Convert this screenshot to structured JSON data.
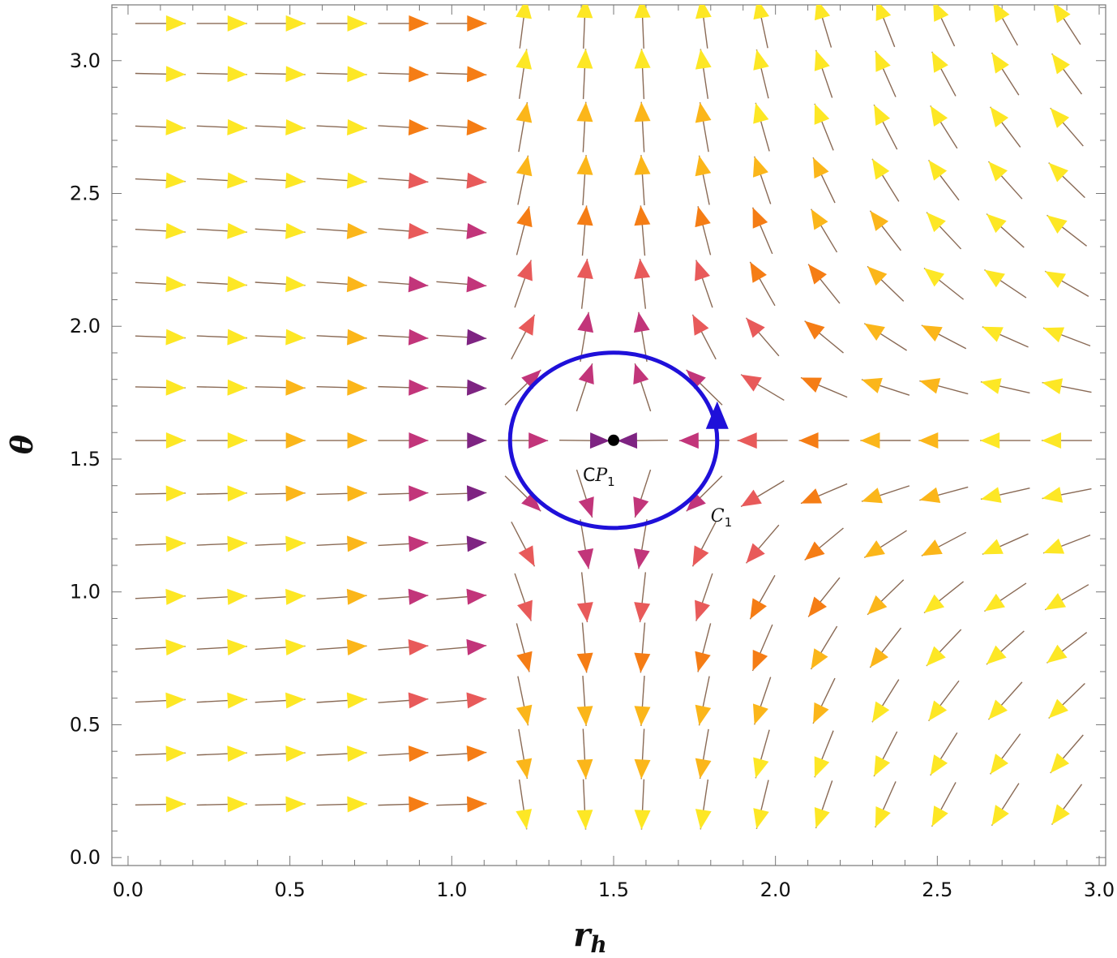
{
  "chart_data": {
    "type": "vector_field",
    "title": "",
    "xlabel": "r",
    "xlabel_sub": "h",
    "ylabel": "θ",
    "xlim": [
      -0.05,
      3.02
    ],
    "ylim": [
      -0.03,
      3.21
    ],
    "xticks": [
      0.0,
      0.5,
      1.0,
      1.5,
      2.0,
      2.5,
      3.0
    ],
    "xtick_labels": [
      "0.0",
      "0.5",
      "1.0",
      "1.5",
      "2.0",
      "2.5",
      "3.0"
    ],
    "yticks": [
      0.0,
      0.5,
      1.0,
      1.5,
      2.0,
      2.5,
      3.0
    ],
    "ytick_labels": [
      "0.0",
      "0.5",
      "1.0",
      "1.5",
      "2.0",
      "2.5",
      "3.0"
    ],
    "grid": false,
    "field": {
      "x_samples": [
        0.1,
        0.29,
        0.47,
        0.66,
        0.85,
        1.03,
        1.22,
        1.41,
        1.59,
        1.78,
        1.96,
        2.15,
        2.34,
        2.52,
        2.71,
        2.9
      ],
      "theta_samples": [
        0.2,
        0.39,
        0.59,
        0.79,
        0.98,
        1.18,
        1.37,
        1.57,
        1.77,
        1.96,
        2.16,
        2.36,
        2.55,
        2.75,
        2.95,
        3.14
      ],
      "critical_theta": 1.5708,
      "critical_r": 1.5,
      "colormap": [
        "#fde725",
        "#fbb61a",
        "#f57d15",
        "#e85a5a",
        "#c2357a",
        "#7e2482",
        "#3b19a8",
        "#1a0f9c"
      ]
    },
    "critical_points": [
      {
        "name": "CP",
        "subscript": "1",
        "r": 1.5,
        "theta": 1.5708
      }
    ],
    "contours": [
      {
        "name": "C",
        "subscript": "1",
        "center_r": 1.5,
        "center_theta": 1.5708,
        "radius_r": 0.32,
        "radius_theta": 0.33,
        "color": "#1f10d9"
      }
    ]
  }
}
